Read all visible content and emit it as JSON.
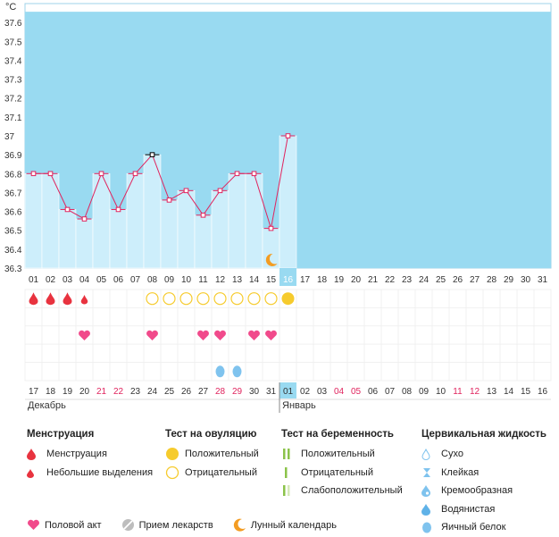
{
  "chart_data": {
    "type": "line",
    "unit_label": "°C",
    "y_ticks": [
      "36.3",
      "36.4",
      "36.5",
      "36.6",
      "36.7",
      "36.8",
      "36.9",
      "37",
      "37.1",
      "37.2",
      "37.3",
      "37.4",
      "37.5",
      "37.6"
    ],
    "ylim": [
      36.3,
      37.7
    ],
    "cycle_days": [
      "01",
      "02",
      "03",
      "04",
      "05",
      "06",
      "07",
      "08",
      "09",
      "10",
      "11",
      "12",
      "13",
      "14",
      "15",
      "16",
      "17",
      "18",
      "19",
      "20",
      "21",
      "22",
      "23",
      "24",
      "25",
      "26",
      "27",
      "28",
      "29",
      "30",
      "31"
    ],
    "temperatures": [
      36.8,
      36.8,
      36.61,
      36.56,
      36.8,
      36.61,
      36.8,
      36.9,
      36.66,
      36.71,
      36.58,
      36.71,
      36.8,
      36.8,
      36.51,
      37.0
    ],
    "today_index": 15,
    "dates": [
      "17",
      "18",
      "19",
      "20",
      "21",
      "22",
      "23",
      "24",
      "25",
      "26",
      "27",
      "28",
      "29",
      "30",
      "31",
      "01",
      "02",
      "03",
      "04",
      "05",
      "06",
      "07",
      "08",
      "09",
      "10",
      "11",
      "12",
      "13",
      "14",
      "15",
      "16"
    ],
    "weekend_indices": [
      4,
      5,
      11,
      12,
      18,
      19,
      25,
      26
    ],
    "months": [
      {
        "label": "Декабрь",
        "start_index": 0
      },
      {
        "label": "Январь",
        "start_index": 15
      }
    ],
    "events": {
      "menstruation_heavy": [
        0,
        1,
        2
      ],
      "menstruation_light": [
        3
      ],
      "ovulation_positive": [
        15
      ],
      "ovulation_negative": [
        7,
        8,
        9,
        10,
        11,
        12,
        13,
        14
      ],
      "intercourse": [
        3,
        7,
        10,
        11,
        13,
        14
      ],
      "cervical_egg_white": [
        11,
        12
      ],
      "lunar": [
        14
      ]
    },
    "colors": {
      "chart_bg": "#99daf1",
      "bar": "#cdeefb",
      "line": "#e0245e",
      "menstruation": "#e8333f",
      "ovulation": "#f6cb2d",
      "heart": "#f14a8b",
      "cervical": "#7fc3ee",
      "lunar": "#f39c22",
      "weekend": "#e0245e",
      "today": "#99daf1"
    }
  },
  "legend": {
    "menstruation": {
      "title": "Менструация",
      "items": [
        "Менструация",
        "Небольшие выделения"
      ]
    },
    "ovulation_test": {
      "title": "Тест на овуляцию",
      "items": [
        "Положительный",
        "Отрицательный"
      ]
    },
    "pregnancy_test": {
      "title": "Тест на беременность",
      "items": [
        "Положительный",
        "Отрицательный",
        "Слабоположительный"
      ]
    },
    "cervical_fluid": {
      "title": "Цервикальная жидкость",
      "items": [
        "Сухо",
        "Клейкая",
        "Кремообразная",
        "Водянистая",
        "Яичный белок"
      ]
    },
    "bottom": [
      "Половой акт",
      "Прием лекарств",
      "Лунный календарь"
    ]
  }
}
